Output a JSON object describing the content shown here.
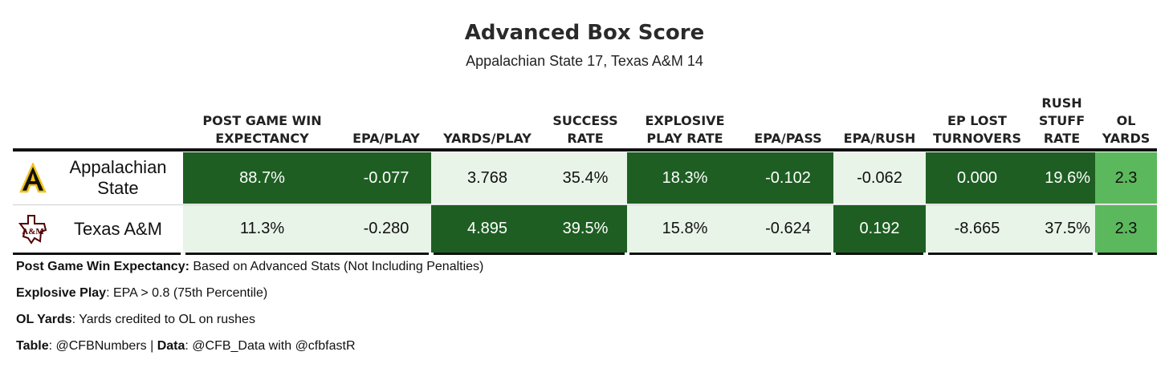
{
  "title": "Advanced Box Score",
  "subtitle": "Appalachian State 17, Texas A&M 14",
  "colors": {
    "dark_green": "#1e5e22",
    "light_green": "#e8f4e8",
    "mid_green": "#5cb85c",
    "text_dark": "#111111",
    "text_light": "#ffffff"
  },
  "chart_data": {
    "type": "table",
    "columns": [
      "POST GAME WIN\nEXPECTANCY",
      "EPA/PLAY",
      "YARDS/PLAY",
      "SUCCESS\nRATE",
      "EXPLOSIVE\nPLAY RATE",
      "EPA/PASS",
      "EPA/RUSH",
      "EP LOST\nTURNOVERS",
      "RUSH\nSTUFF\nRATE",
      "OL\nYARDS"
    ],
    "rows": [
      {
        "team": "Appalachian\nState",
        "logo": "appalachian-state-logo",
        "values": [
          "88.7%",
          "-0.077",
          "3.768",
          "35.4%",
          "18.3%",
          "-0.102",
          "-0.062",
          "0.000",
          "19.6%",
          "2.3"
        ],
        "shade": [
          "dark",
          "dark",
          "light",
          "light",
          "dark",
          "dark",
          "light",
          "dark",
          "dark",
          "mid"
        ]
      },
      {
        "team": "Texas A&M",
        "logo": "texas-am-logo",
        "values": [
          "11.3%",
          "-0.280",
          "4.895",
          "39.5%",
          "15.8%",
          "-0.624",
          "0.192",
          "-8.665",
          "37.5%",
          "2.3"
        ],
        "shade": [
          "light",
          "light",
          "dark",
          "dark",
          "light",
          "light",
          "dark",
          "light",
          "light",
          "mid"
        ]
      }
    ]
  },
  "notes": [
    {
      "label": "Post Game Win Expectancy:",
      "text": " Based on Advanced Stats (Not Including Penalties)"
    },
    {
      "label": "Explosive Play",
      "text": ": EPA > 0.8 (75th Percentile)"
    },
    {
      "label": "OL Yards",
      "text": ": Yards credited to OL on rushes"
    },
    {
      "label": "Table",
      "text": ": @CFBNumbers | ",
      "label2": "Data",
      "text2": ": @CFB_Data with @cfbfastR"
    }
  ]
}
